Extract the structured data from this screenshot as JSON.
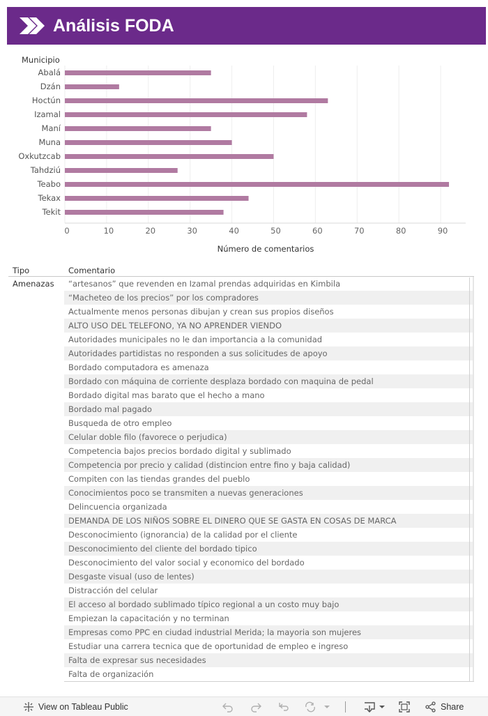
{
  "header": {
    "title": "Análisis FODA",
    "logo_icon": "double-chevron-icon",
    "bg_color": "#6b2a8a"
  },
  "chart_data": {
    "type": "bar",
    "orientation": "horizontal",
    "dimension_label": "Municipio",
    "categories": [
      "Abalá",
      "Dzán",
      "Hoctún",
      "Izamal",
      "Maní",
      "Muna",
      "Oxkutzcab",
      "Tahdziú",
      "Teabo",
      "Tekax",
      "Tekit"
    ],
    "values": [
      35,
      13,
      63,
      58,
      35,
      40,
      50,
      27,
      92,
      44,
      38
    ],
    "xlabel": "Número de comentarios",
    "xlim": [
      0,
      96
    ],
    "xticks": [
      0,
      10,
      20,
      30,
      40,
      50,
      60,
      70,
      80,
      90
    ],
    "grid": true,
    "bar_color": "#b07aa1"
  },
  "table": {
    "col_tipo": "Tipo",
    "col_comentario": "Comentario",
    "group": "Amenazas",
    "rows": [
      "“artesanos” que revenden en Izamal prendas adquiridas en Kimbila",
      "“Macheteo de los precios” por los compradores",
      "Actualmente menos personas dibujan y crean sus propios diseños",
      "ALTO USO DEL TELEFONO, YA NO APRENDER VIENDO",
      "Autoridades municipales no le dan importancia a la comunidad",
      "Autoridades partidistas no responden a sus solicitudes de apoyo",
      "Bordado computadora es amenaza",
      "Bordado con máquina de corriente desplaza bordado con maquina de pedal",
      "Bordado digital mas barato que el hecho a mano",
      "Bordado mal pagado",
      "Busqueda de otro empleo",
      "Celular doble filo (favorece o perjudica)",
      "Competencia bajos precios bordado digital y sublimado",
      "Competencia por precio y calidad (distincion entre fino y baja calidad)",
      "Compiten con las tiendas grandes del pueblo",
      "Conocimientos poco se transmiten a nuevas generaciones",
      "Delincuencia organizada",
      "DEMANDA DE LOS NIÑOS SOBRE EL DINERO QUE SE GASTA EN COSAS DE MARCA",
      "Desconocimiento (ignorancia) de la calidad por el cliente",
      "Desconocimiento del cliente del bordado tipico",
      "Desconocimiento del valor social y economico del bordado",
      "Desgaste visual (uso de lentes)",
      "Distracción del celular",
      "El acceso al bordado sublimado típico regional a un costo muy bajo",
      "Empiezan la capacitación y no terminan",
      "Empresas como PPC en ciudad industrial Merida; la mayoria son mujeres",
      "Estudiar una carrera tecnica que de oportunidad de empleo e ingreso",
      "Falta de expresar sus necesidades",
      "Falta de organización"
    ]
  },
  "footer": {
    "view_label": "View on Tableau Public",
    "share_label": "Share"
  }
}
